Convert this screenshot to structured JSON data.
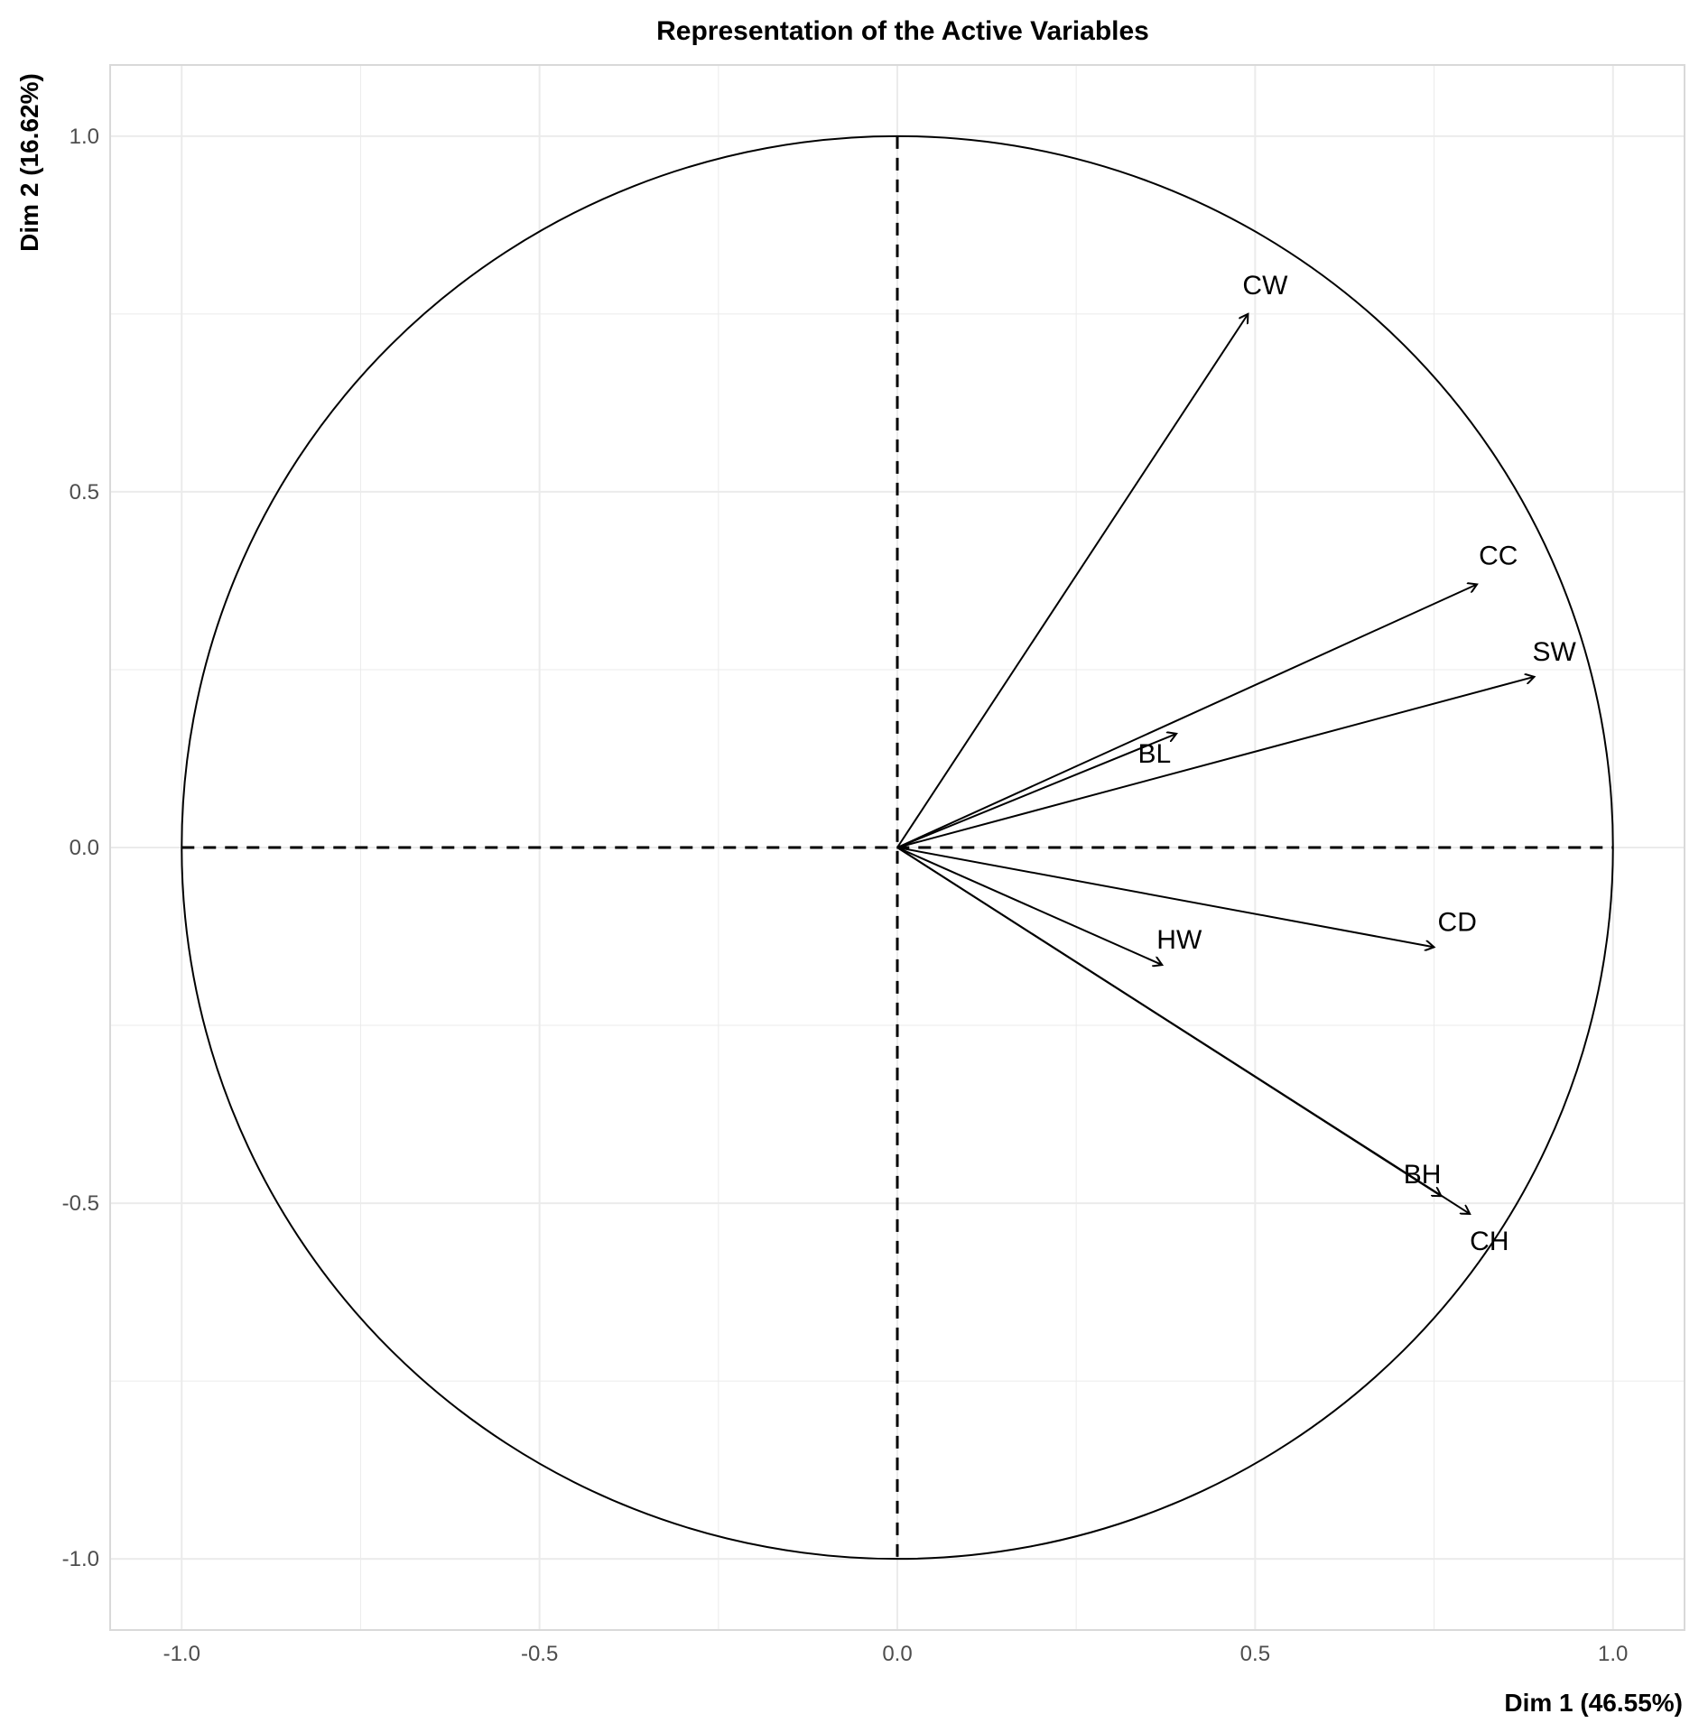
{
  "chart_data": {
    "type": "scatter",
    "title": "Representation of the Active Variables",
    "xlabel": "Dim 1 (46.55%)",
    "ylabel": "Dim 2 (16.62%)",
    "xlim": [
      -1.1,
      1.1
    ],
    "ylim": [
      -1.1,
      1.1
    ],
    "xticks": [
      -1.0,
      -0.5,
      0.0,
      0.5,
      1.0
    ],
    "yticks": [
      -1.0,
      -0.5,
      0.0,
      0.5,
      1.0
    ],
    "xtick_labels": [
      "-1.0",
      "-0.5",
      "0.0",
      "0.5",
      "1.0"
    ],
    "ytick_labels": [
      "-1.0",
      "-0.5",
      "0.0",
      "0.5",
      "1.0"
    ],
    "grid": true,
    "correlation_circle": true,
    "reference_lines": "dashed",
    "vectors": [
      {
        "label": "CW",
        "x": 0.49,
        "y": 0.75
      },
      {
        "label": "CC",
        "x": 0.81,
        "y": 0.37
      },
      {
        "label": "SW",
        "x": 0.89,
        "y": 0.24
      },
      {
        "label": "BL",
        "x": 0.39,
        "y": 0.16
      },
      {
        "label": "CD",
        "x": 0.75,
        "y": -0.14
      },
      {
        "label": "HW",
        "x": 0.37,
        "y": -0.165
      },
      {
        "label": "BH",
        "x": 0.76,
        "y": -0.49
      },
      {
        "label": "CH",
        "x": 0.8,
        "y": -0.515
      }
    ],
    "colors": {
      "line": "#000000",
      "grid": "#ebebeb",
      "tick_text": "#4d4d4d",
      "panel_border": "#d9d9d9"
    }
  }
}
